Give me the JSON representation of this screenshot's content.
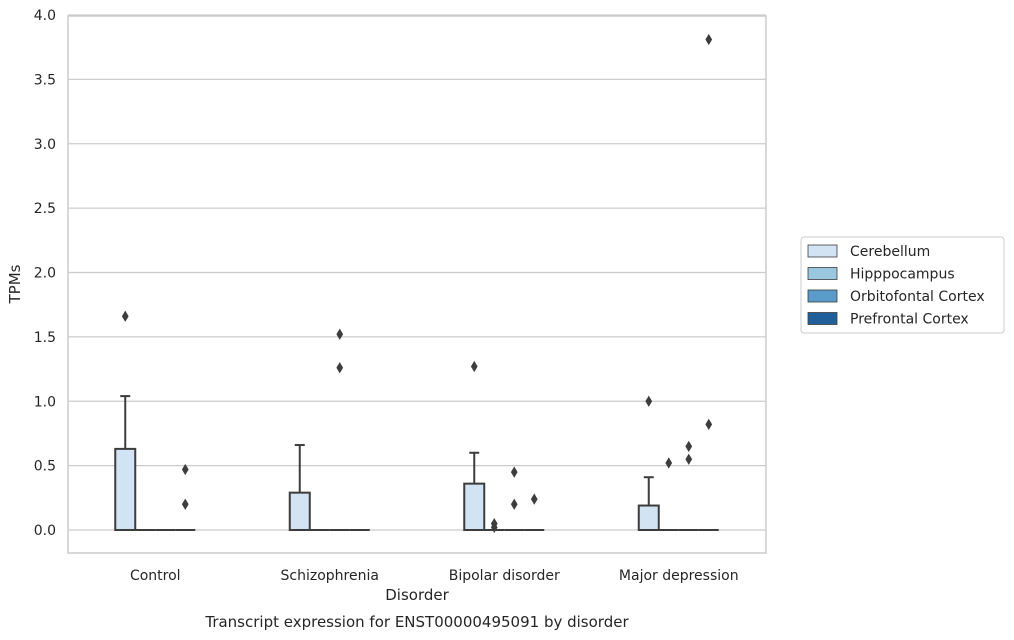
{
  "chart_data": {
    "type": "box",
    "title": "Transcript expression for ENST00000495091 by disorder",
    "xlabel": "Disorder",
    "ylabel": "TPMs",
    "ylim": [
      -0.18,
      4.0
    ],
    "yticks": [
      "0.0",
      "0.5",
      "1.0",
      "1.5",
      "2.0",
      "2.5",
      "3.0",
      "3.5",
      "4.0"
    ],
    "ytick_values": [
      0,
      0.5,
      1.0,
      1.5,
      2.0,
      2.5,
      3.0,
      3.5,
      4.0
    ],
    "grid": true,
    "legend_position": "right",
    "categories": [
      "Control",
      "Schizophrenia",
      "Bipolar disorder",
      "Major depression"
    ],
    "series": [
      {
        "name": "Cerebellum",
        "color": "#d2e3f3",
        "boxes": [
          {
            "q1": 0,
            "median": 0,
            "q3": 0.63,
            "whisker_low": 0,
            "whisker_high": 1.04,
            "outliers": [
              1.66
            ]
          },
          {
            "q1": 0,
            "median": 0,
            "q3": 0.29,
            "whisker_low": 0,
            "whisker_high": 0.66,
            "outliers": []
          },
          {
            "q1": 0,
            "median": 0,
            "q3": 0.36,
            "whisker_low": 0,
            "whisker_high": 0.6,
            "outliers": [
              1.27
            ]
          },
          {
            "q1": 0,
            "median": 0,
            "q3": 0.19,
            "whisker_low": 0,
            "whisker_high": 0.41,
            "outliers": [
              1.0
            ]
          }
        ]
      },
      {
        "name": "Hipppocampus",
        "color": "#9ac8e0",
        "boxes": [
          {
            "q1": 0,
            "median": 0,
            "q3": 0,
            "whisker_low": 0,
            "whisker_high": 0,
            "outliers": []
          },
          {
            "q1": 0,
            "median": 0,
            "q3": 0,
            "whisker_low": 0,
            "whisker_high": 0,
            "outliers": []
          },
          {
            "q1": 0,
            "median": 0,
            "q3": 0,
            "whisker_low": 0,
            "whisker_high": 0,
            "outliers": [
              0.05,
              0.02
            ]
          },
          {
            "q1": 0,
            "median": 0,
            "q3": 0,
            "whisker_low": 0,
            "whisker_high": 0,
            "outliers": [
              0.52
            ]
          }
        ]
      },
      {
        "name": "Orbitofontal Cortex",
        "color": "#5a9bc9",
        "boxes": [
          {
            "q1": 0,
            "median": 0,
            "q3": 0,
            "whisker_low": 0,
            "whisker_high": 0,
            "outliers": []
          },
          {
            "q1": 0,
            "median": 0,
            "q3": 0,
            "whisker_low": 0,
            "whisker_high": 0,
            "outliers": [
              1.52,
              1.26
            ]
          },
          {
            "q1": 0,
            "median": 0,
            "q3": 0,
            "whisker_low": 0,
            "whisker_high": 0,
            "outliers": [
              0.45,
              0.2
            ]
          },
          {
            "q1": 0,
            "median": 0,
            "q3": 0,
            "whisker_low": 0,
            "whisker_high": 0,
            "outliers": [
              0.65,
              0.55
            ]
          }
        ]
      },
      {
        "name": "Prefrontal Cortex",
        "color": "#215f9a",
        "boxes": [
          {
            "q1": 0,
            "median": 0,
            "q3": 0,
            "whisker_low": 0,
            "whisker_high": 0,
            "outliers": [
              0.47,
              0.2
            ]
          },
          {
            "q1": 0,
            "median": 0,
            "q3": 0,
            "whisker_low": 0,
            "whisker_high": 0,
            "outliers": []
          },
          {
            "q1": 0,
            "median": 0,
            "q3": 0,
            "whisker_low": 0,
            "whisker_high": 0,
            "outliers": [
              0.24
            ]
          },
          {
            "q1": 0,
            "median": 0,
            "q3": 0,
            "whisker_low": 0,
            "whisker_high": 0,
            "outliers": [
              3.81,
              0.82
            ]
          }
        ]
      }
    ],
    "colors": {
      "grid": "#cccccc",
      "frame": "#cccccc",
      "box_edge": "#3d3d3d",
      "outlier": "#3d3d3d"
    }
  }
}
